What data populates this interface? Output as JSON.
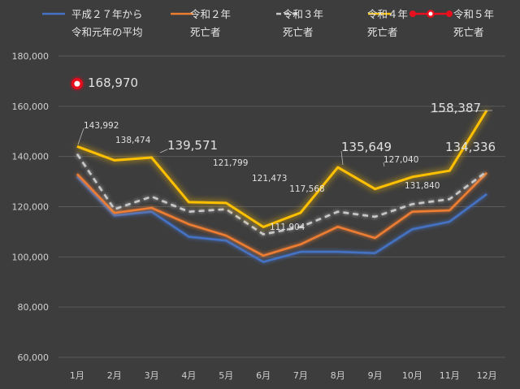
{
  "chart_data": {
    "type": "line",
    "title": "",
    "xlabel": "",
    "ylabel": "",
    "categories": [
      "1月",
      "2月",
      "3月",
      "4月",
      "5月",
      "6月",
      "7月",
      "8月",
      "9月",
      "10月",
      "11月",
      "12月"
    ],
    "y_ticks": [
      "60,000",
      "80,000",
      "100,000",
      "120,000",
      "140,000",
      "160,000",
      "180,000"
    ],
    "ylim": [
      60000,
      180000
    ],
    "grid": true,
    "legend_position": "top",
    "series": [
      {
        "name_lines": [
          "平成２７年から",
          "令和元年の平均"
        ],
        "color": "#4472c4",
        "dash": false,
        "glow": false,
        "values": [
          132000,
          116500,
          118000,
          108000,
          106500,
          98000,
          102000,
          102000,
          101500,
          111000,
          114000,
          125000
        ]
      },
      {
        "name_lines": [
          "令和２年",
          "死亡者"
        ],
        "color": "#ed7d31",
        "dash": false,
        "glow": false,
        "values": [
          133000,
          117500,
          119500,
          113000,
          108500,
          100500,
          105000,
          112000,
          107500,
          118000,
          118500,
          133500
        ]
      },
      {
        "name_lines": [
          "令和３年",
          "死亡者"
        ],
        "color": "#c8c8c8",
        "dash": true,
        "glow": false,
        "values": [
          141000,
          119000,
          124000,
          118000,
          119000,
          109000,
          111904,
          118000,
          116000,
          121000,
          123000,
          134000
        ]
      },
      {
        "name_lines": [
          "令和４年",
          "死亡者"
        ],
        "color": "#ffc000",
        "dash": false,
        "glow": true,
        "values": [
          143992,
          138474,
          139571,
          121799,
          121473,
          111904,
          117568,
          135649,
          127040,
          131840,
          134336,
          158387
        ]
      },
      {
        "name_lines": [
          "令和５年",
          "死亡者"
        ],
        "color": "#e8101e",
        "dash": false,
        "glow": false,
        "values": [
          168970,
          null,
          null,
          null,
          null,
          null,
          null,
          null,
          null,
          null,
          null,
          null
        ]
      }
    ],
    "data_labels": [
      {
        "text": "143,992",
        "big": false
      },
      {
        "text": "138,474",
        "big": false
      },
      {
        "text": "139,571",
        "big": true
      },
      {
        "text": "121,799",
        "big": false
      },
      {
        "text": "121,473",
        "big": false
      },
      {
        "text": "111,904",
        "big": false
      },
      {
        "text": "117,568",
        "big": false
      },
      {
        "text": "135,649",
        "big": true
      },
      {
        "text": "127,040",
        "big": false
      },
      {
        "text": "131,840",
        "big": false
      },
      {
        "text": "134,336",
        "big": true
      },
      {
        "text": "158,387",
        "big": true
      },
      {
        "text": "168,970",
        "big": true
      }
    ]
  }
}
